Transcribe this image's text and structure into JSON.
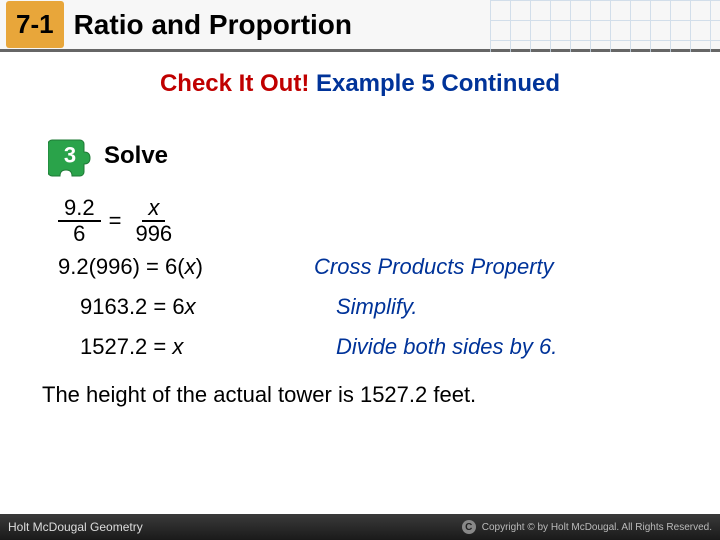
{
  "header": {
    "lesson_number": "7-1",
    "title": "Ratio and Proportion",
    "badge_bg": "#e8a63a",
    "grid_color": "#c9d9e8"
  },
  "subtitle": {
    "red_text": "Check It Out!",
    "blue_text": " Example 5 Continued"
  },
  "step": {
    "number": "3",
    "label": "Solve",
    "piece_color": "#2aa34a"
  },
  "equation": {
    "frac1_num": "9.2",
    "frac1_den": "6",
    "equals": "=",
    "frac2_num": "x",
    "frac2_den": "996"
  },
  "work": [
    {
      "left": "9.2(996) = 6(x)",
      "right": "Cross Products Property",
      "indent": false
    },
    {
      "left": "9163.2 = 6x",
      "right": "Simplify.",
      "indent": true
    },
    {
      "left": "1527.2 = x",
      "right": "Divide both sides by 6.",
      "indent": true
    }
  ],
  "conclusion": "The height of the actual tower is 1527.2 feet.",
  "footer": {
    "left": "Holt McDougal Geometry",
    "right": "Copyright © by Holt McDougal. All Rights Reserved."
  }
}
